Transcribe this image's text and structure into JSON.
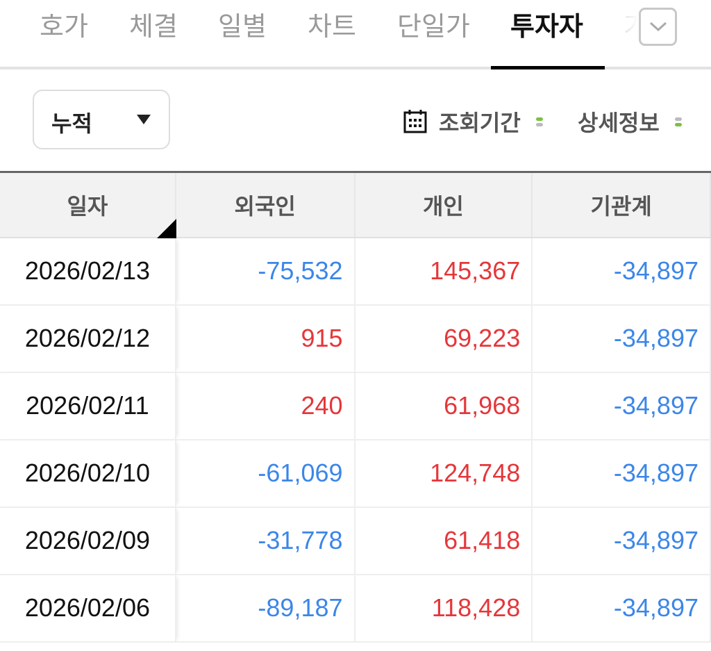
{
  "tabs": [
    {
      "label": "호가"
    },
    {
      "label": "체결"
    },
    {
      "label": "일별"
    },
    {
      "label": "차트"
    },
    {
      "label": "단일가"
    },
    {
      "label": "투자자",
      "active": true
    },
    {
      "label": "가"
    }
  ],
  "controls": {
    "mode_select": "누적",
    "period_label": "조회기간",
    "detail_label": "상세정보"
  },
  "colors": {
    "positive": "#e5363a",
    "negative": "#3b86e8",
    "accent_green": "#7cc043"
  },
  "table": {
    "headers": [
      "일자",
      "외국인",
      "개인",
      "기관계"
    ],
    "rows": [
      [
        "2026/02/13",
        "-75,532",
        "145,367",
        "-34,897"
      ],
      [
        "2026/02/12",
        "915",
        "69,223",
        "-34,897"
      ],
      [
        "2026/02/11",
        "240",
        "61,968",
        "-34,897"
      ],
      [
        "2026/02/10",
        "-61,069",
        "124,748",
        "-34,897"
      ],
      [
        "2026/02/09",
        "-31,778",
        "61,418",
        "-34,897"
      ],
      [
        "2026/02/06",
        "-89,187",
        "118,428",
        "-34,897"
      ]
    ]
  }
}
